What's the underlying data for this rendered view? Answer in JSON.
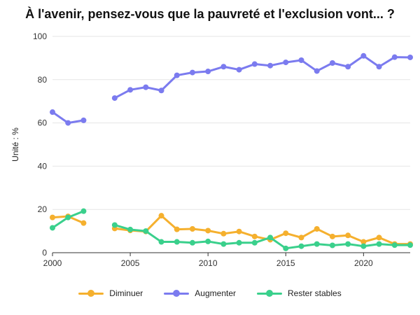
{
  "chart_data": {
    "type": "line",
    "title": "À l'avenir, pensez-vous que la pauvreté et l'exclusion vont... ?",
    "ylabel": "Unité : %",
    "xlabel": "",
    "xlim": [
      2000,
      2023
    ],
    "ylim": [
      0,
      100
    ],
    "x_ticks": [
      2000,
      2005,
      2010,
      2015,
      2020
    ],
    "y_ticks": [
      0,
      20,
      40,
      60,
      80,
      100
    ],
    "grid": "horizontal",
    "legend_position": "bottom",
    "years": [
      2000,
      2001,
      2002,
      2003,
      2004,
      2005,
      2006,
      2007,
      2008,
      2009,
      2010,
      2011,
      2012,
      2013,
      2014,
      2015,
      2016,
      2017,
      2018,
      2019,
      2020,
      2021,
      2022,
      2023
    ],
    "series": [
      {
        "name": "Diminuer",
        "color": "#f5b02e",
        "values": [
          16.3,
          16.8,
          13.7,
          null,
          11.2,
          10.3,
          9.8,
          17.1,
          10.8,
          11.0,
          10.2,
          8.8,
          9.8,
          7.5,
          6.0,
          9.0,
          7.0,
          11.0,
          7.5,
          8.0,
          5.0,
          7.0,
          4.0,
          4.0
        ]
      },
      {
        "name": "Augmenter",
        "color": "#7b7bef",
        "values": [
          65.0,
          60.0,
          61.2,
          null,
          71.5,
          75.3,
          76.5,
          75.0,
          82.0,
          83.3,
          83.8,
          86.0,
          84.6,
          87.2,
          86.5,
          88.0,
          89.0,
          84.0,
          87.7,
          86.0,
          91.0,
          86.0,
          90.4,
          90.3
        ]
      },
      {
        "name": "Rester stables",
        "color": "#3ad08c",
        "values": [
          11.5,
          16.3,
          19.2,
          null,
          12.8,
          10.7,
          10.0,
          5.0,
          5.0,
          4.6,
          5.2,
          4.0,
          4.6,
          4.6,
          7.0,
          2.0,
          3.0,
          4.0,
          3.4,
          4.0,
          3.0,
          4.0,
          3.5,
          3.5
        ]
      }
    ]
  }
}
